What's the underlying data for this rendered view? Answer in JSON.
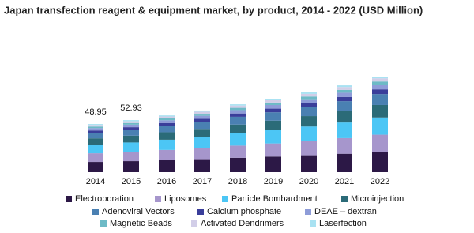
{
  "chart_data": {
    "type": "stacked_bar",
    "title": "Japan transfection reagent & equipment market, by product, 2014 - 2022 (USD Million)",
    "categories": [
      "2014",
      "2015",
      "2016",
      "2017",
      "2018",
      "2019",
      "2020",
      "2021",
      "2022"
    ],
    "series": [
      {
        "name": "Electroporation",
        "color": "#2c1846",
        "values": [
          10.4,
          11.2,
          12.2,
          13.2,
          14.6,
          15.8,
          17.2,
          18.7,
          20.6
        ]
      },
      {
        "name": "Liposomes",
        "color": "#a696cc",
        "values": [
          8.8,
          9.5,
          10.4,
          11.3,
          12.4,
          13.4,
          14.6,
          15.9,
          17.5
        ]
      },
      {
        "name": "Particle Bombardment",
        "color": "#4cc6f5",
        "values": [
          8.8,
          9.5,
          10.4,
          11.3,
          12.4,
          13.4,
          14.6,
          15.9,
          17.5
        ]
      },
      {
        "name": "Microinjection",
        "color": "#2b6b78",
        "values": [
          6.4,
          6.9,
          7.6,
          8.2,
          9.0,
          9.8,
          10.6,
          11.6,
          12.7
        ]
      },
      {
        "name": "Adenoviral Vectors",
        "color": "#4a80b2",
        "values": [
          5.6,
          6.0,
          6.6,
          7.1,
          7.9,
          8.5,
          9.2,
          10.1,
          11.1
        ]
      },
      {
        "name": "Calcium phosphate",
        "color": "#3a3e9a",
        "values": [
          2.4,
          2.6,
          2.8,
          3.1,
          3.4,
          3.7,
          4.0,
          4.3,
          4.8
        ]
      },
      {
        "name": "DEAE – dextran",
        "color": "#8e9cd8",
        "values": [
          2.4,
          2.6,
          2.8,
          3.1,
          3.4,
          3.7,
          4.0,
          4.3,
          4.8
        ]
      },
      {
        "name": "Magnetic Beads",
        "color": "#6dbac6",
        "values": [
          1.6,
          1.7,
          1.9,
          2.1,
          2.3,
          2.5,
          2.7,
          2.9,
          3.2
        ]
      },
      {
        "name": "Activated Dendrimers",
        "color": "#d2cee8",
        "values": [
          1.6,
          1.7,
          1.9,
          2.1,
          2.3,
          2.5,
          2.7,
          2.9,
          3.2
        ]
      },
      {
        "name": "Laserfection",
        "color": "#a9e2f2",
        "values": [
          0.95,
          1.23,
          1.1,
          1.2,
          1.3,
          1.4,
          1.5,
          1.7,
          1.8
        ]
      }
    ],
    "annotations": [
      {
        "x": "2014",
        "value": 48.95
      },
      {
        "x": "2015",
        "value": 52.93
      }
    ]
  }
}
